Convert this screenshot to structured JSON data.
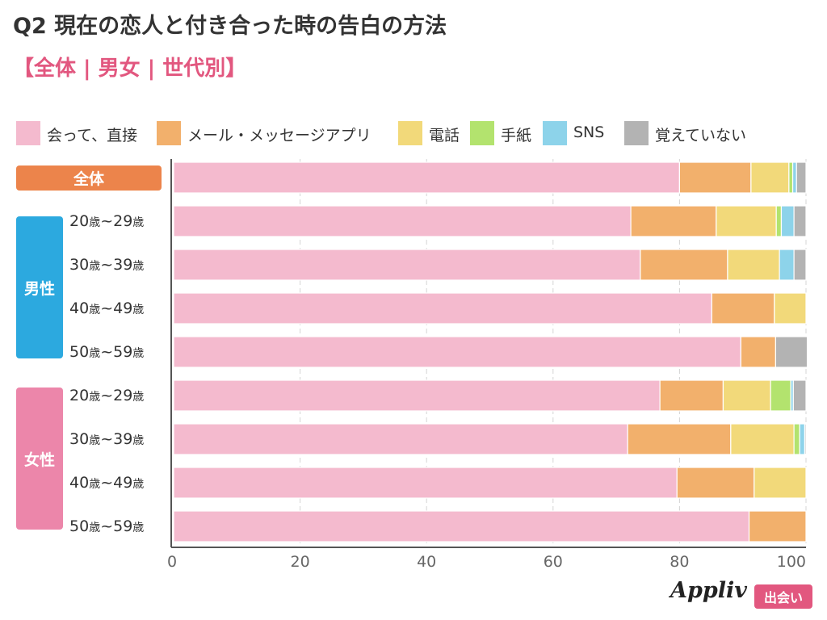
{
  "header": {
    "title": "Q2 現在の恋人と付き合った時の告白の方法",
    "subtitle": "【全体 | 男女 | 世代別】"
  },
  "groups": {
    "all": "全体",
    "male": "男性",
    "female": "女性"
  },
  "brand": {
    "logo": "Appliv",
    "tag": "出会い"
  },
  "chart_data": {
    "type": "bar",
    "orientation": "horizontal",
    "stacked": true,
    "title": "Q2 現在の恋人と付き合った時の告白の方法",
    "subtitle": "【全体 | 男女 | 世代別】",
    "xlabel": "",
    "ylabel": "",
    "xlim": [
      0,
      100
    ],
    "xticks": [
      0,
      20,
      40,
      60,
      80,
      100
    ],
    "grid": true,
    "legend_position": "top",
    "categories": [
      {
        "label": "全体",
        "group": "all"
      },
      {
        "label": "20歳~29歳",
        "group": "male"
      },
      {
        "label": "30歳~39歳",
        "group": "male"
      },
      {
        "label": "40歳~49歳",
        "group": "male"
      },
      {
        "label": "50歳~59歳",
        "group": "male"
      },
      {
        "label": "20歳~29歳",
        "group": "female"
      },
      {
        "label": "30歳~39歳",
        "group": "female"
      },
      {
        "label": "40歳~49歳",
        "group": "female"
      },
      {
        "label": "50歳~59歳",
        "group": "female"
      }
    ],
    "series": [
      {
        "name": "会って、直接",
        "color": "#f4bace",
        "values": [
          80,
          72.3,
          73.8,
          85.1,
          89.7,
          76.9,
          71.8,
          79.6,
          91
        ]
      },
      {
        "name": "メール・メッセージアプリ",
        "color": "#f2b06c",
        "values": [
          11.3,
          13.5,
          13.8,
          9.9,
          5.5,
          10,
          16.3,
          12.2,
          9
        ]
      },
      {
        "name": "電話",
        "color": "#f2d97a",
        "values": [
          6,
          9.5,
          8.2,
          5,
          0,
          7.5,
          10,
          8.2,
          0
        ]
      },
      {
        "name": "手紙",
        "color": "#b3e36e",
        "values": [
          0.6,
          0.8,
          0,
          0,
          0,
          3.2,
          0.9,
          0,
          0
        ]
      },
      {
        "name": "SNS",
        "color": "#8dd3ea",
        "values": [
          0.6,
          2,
          2.3,
          0,
          0,
          0.4,
          0.8,
          0,
          0
        ]
      },
      {
        "name": "覚えていない",
        "color": "#b3b3b3",
        "values": [
          1.5,
          1.9,
          1.9,
          0,
          5,
          2,
          0.2,
          0,
          0
        ]
      }
    ]
  }
}
